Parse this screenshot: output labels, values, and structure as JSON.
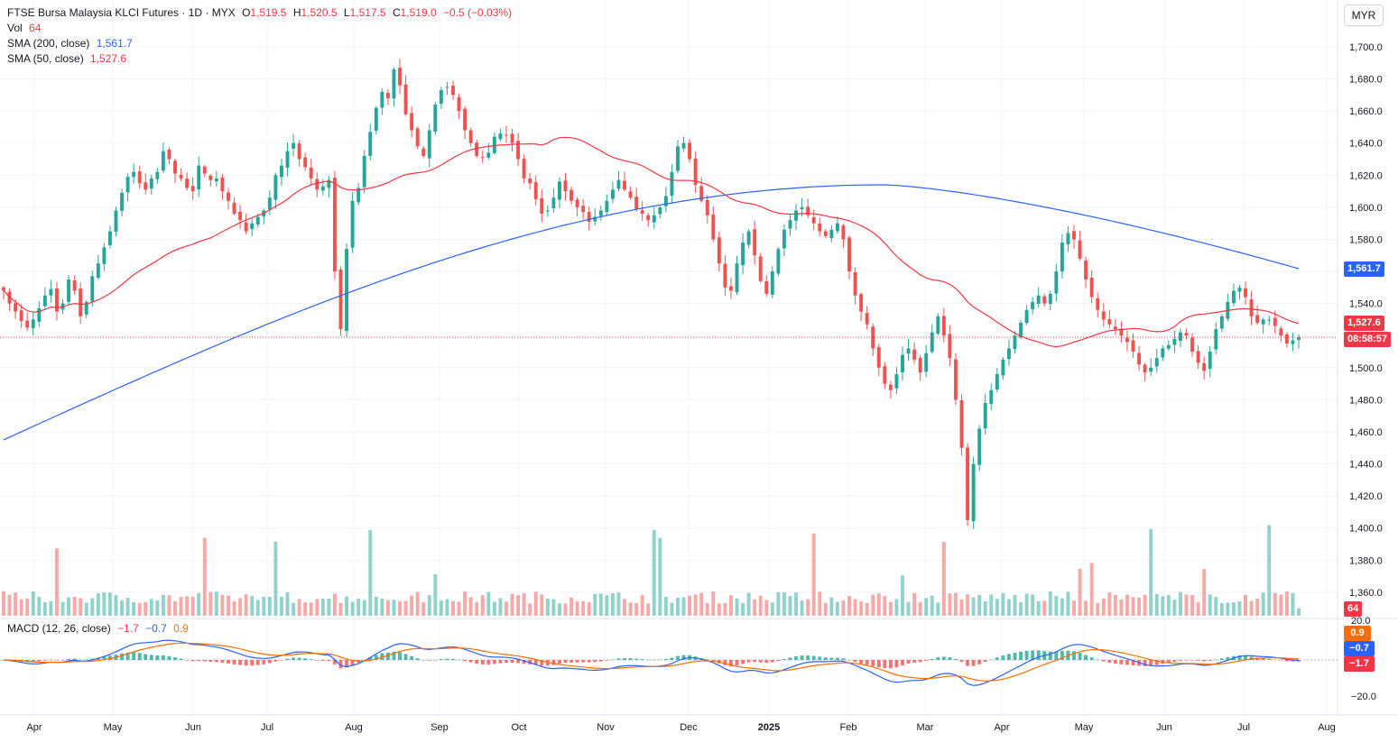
{
  "header": {
    "symbol": "FTSE Bursa Malaysia KLCI Futures · 1D · MYX",
    "o_label": "O",
    "o": "1,519.5",
    "h_label": "H",
    "h": "1,520.5",
    "l_label": "L",
    "l": "1,517.5",
    "c_label": "C",
    "c": "1,519.0",
    "change": "−0.5 (−0.03%)"
  },
  "volume_legend": {
    "label": "Vol",
    "value": "64"
  },
  "sma200_legend": {
    "label": "SMA (200, close)",
    "value": "1,561.7"
  },
  "sma50_legend": {
    "label": "SMA (50, close)",
    "value": "1,527.6"
  },
  "macd_legend": {
    "label": "MACD (12, 26, close)",
    "hist": "−1.7",
    "macd": "−0.7",
    "signal": "0.9"
  },
  "currency": "MYR",
  "price_tags": {
    "sma200": "1,561.7",
    "sma50": "1,527.6",
    "countdown": "08:58:57",
    "volume": "64",
    "macd_signal": "0.9",
    "macd_line": "−0.7",
    "macd_hist": "−1.7"
  },
  "colors": {
    "up": "#26a69a",
    "down": "#ef5350",
    "sma200": "#2962ff",
    "sma50": "#f23645",
    "macd": "#2962ff",
    "signal": "#ff6d00"
  },
  "chart_data": {
    "type": "candlestick",
    "y_ticks": [
      "1,700.0",
      "1,680.0",
      "1,660.0",
      "1,640.0",
      "1,620.0",
      "1,600.0",
      "1,580.0",
      "1,560.0",
      "1,540.0",
      "1,500.0",
      "1,480.0",
      "1,460.0",
      "1,440.0",
      "1,420.0",
      "1,400.0",
      "1,380.0",
      "1,360.0"
    ],
    "x_ticks": [
      "Apr",
      "May",
      "Jun",
      "Jul",
      "Aug",
      "Sep",
      "Oct",
      "Nov",
      "Dec",
      "2025",
      "Feb",
      "Mar",
      "Apr",
      "May",
      "Jun",
      "Jul",
      "Aug"
    ],
    "macd_ticks": [
      "20.0",
      "−20.0"
    ],
    "ylim": [
      1350,
      1715
    ],
    "last_close": 1519.0,
    "close": [
      1548,
      1540,
      1535,
      1529,
      1525,
      1530,
      1537,
      1545,
      1549,
      1535,
      1540,
      1555,
      1548,
      1532,
      1541,
      1557,
      1565,
      1575,
      1585,
      1598,
      1609,
      1619,
      1622,
      1615,
      1611,
      1618,
      1622,
      1635,
      1630,
      1621,
      1618,
      1612,
      1610,
      1626,
      1621,
      1617,
      1618,
      1610,
      1604,
      1596,
      1592,
      1585,
      1590,
      1594,
      1598,
      1606,
      1620,
      1626,
      1635,
      1640,
      1630,
      1625,
      1618,
      1611,
      1613,
      1617,
      1560,
      1524,
      1574,
      1604,
      1612,
      1632,
      1647,
      1662,
      1672,
      1668,
      1686,
      1676,
      1658,
      1648,
      1638,
      1632,
      1648,
      1664,
      1673,
      1675,
      1670,
      1660,
      1648,
      1640,
      1632,
      1631,
      1634,
      1644,
      1646,
      1645,
      1640,
      1630,
      1618,
      1615,
      1605,
      1596,
      1598,
      1606,
      1616,
      1610,
      1604,
      1600,
      1597,
      1591,
      1594,
      1598,
      1604,
      1611,
      1617,
      1611,
      1606,
      1599,
      1596,
      1592,
      1595,
      1600,
      1607,
      1622,
      1638,
      1640,
      1630,
      1614,
      1604,
      1595,
      1580,
      1565,
      1550,
      1548,
      1565,
      1578,
      1585,
      1570,
      1554,
      1546,
      1560,
      1574,
      1586,
      1592,
      1598,
      1600,
      1595,
      1590,
      1585,
      1582,
      1586,
      1590,
      1580,
      1560,
      1545,
      1535,
      1527,
      1512,
      1500,
      1490,
      1486,
      1496,
      1508,
      1512,
      1505,
      1497,
      1509,
      1522,
      1532,
      1520,
      1506,
      1480,
      1450,
      1405,
      1440,
      1462,
      1478,
      1486,
      1496,
      1505,
      1512,
      1520,
      1528,
      1536,
      1541,
      1545,
      1540,
      1546,
      1560,
      1578,
      1584,
      1580,
      1568,
      1555,
      1544,
      1536,
      1530,
      1527,
      1524,
      1520,
      1516,
      1510,
      1502,
      1497,
      1500,
      1506,
      1512,
      1514,
      1518,
      1522,
      1520,
      1510,
      1503,
      1498,
      1510,
      1524,
      1532,
      1541,
      1548,
      1550,
      1544,
      1532,
      1528,
      1530,
      1530,
      1526,
      1520,
      1515,
      1517,
      1519
    ],
    "sma200_start": 1455,
    "sma200_end": 1561.7,
    "sma50_end": 1527.6,
    "volume_last": 64,
    "macd_last": -0.7,
    "signal_last": 0.9,
    "hist_last": -1.7
  }
}
